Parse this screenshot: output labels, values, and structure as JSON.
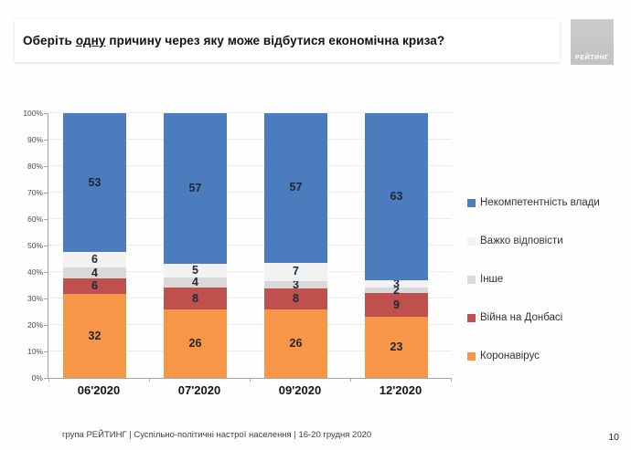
{
  "title": {
    "part1": "Оберіть ",
    "underlined": "одну",
    "part2": " причину через яку може відбутися економічна криза?"
  },
  "logo": {
    "text": "РЕЙТИНГ"
  },
  "footer": {
    "source": "група РЕЙТИНГ | Суспільно-політичні настрої населення | 16-20 грудня 2020",
    "page": "10"
  },
  "chart_data": {
    "type": "bar",
    "stacked": true,
    "title": "Оберіть одну причину через яку може відбутися економічна криза?",
    "categories": [
      "06'2020",
      "07'2020",
      "09'2020",
      "12'2020"
    ],
    "series": [
      {
        "name": "Коронавірус",
        "color": "#f79646",
        "values": [
          32,
          26,
          26,
          23
        ]
      },
      {
        "name": "Війна на Донбасі",
        "color": "#c0504d",
        "values": [
          6,
          8,
          8,
          9
        ]
      },
      {
        "name": "Інше",
        "color": "#d9d9d9",
        "values": [
          4,
          4,
          3,
          2
        ]
      },
      {
        "name": "Важко відповісти",
        "color": "#f2f2f2",
        "values": [
          6,
          5,
          7,
          3
        ]
      },
      {
        "name": "Некомпетентність влади",
        "color": "#4a7cbe",
        "values": [
          53,
          57,
          57,
          63
        ]
      }
    ],
    "legend_order": [
      "Некомпетентність влади",
      "Важко відповісти",
      "Інше",
      "Війна на Донбасі",
      "Коронавірус"
    ],
    "yticks": [
      "0%",
      "10%",
      "20%",
      "30%",
      "40%",
      "50%",
      "60%",
      "70%",
      "80%",
      "90%",
      "100%"
    ],
    "ylim": [
      0,
      100
    ],
    "grid": true,
    "legend_position": "right",
    "units": "%"
  }
}
